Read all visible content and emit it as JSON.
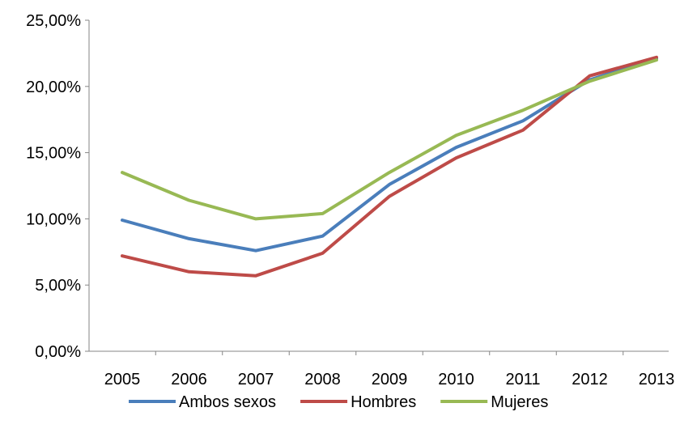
{
  "chart_data": {
    "type": "line",
    "x": [
      "2005",
      "2006",
      "2007",
      "2008",
      "2009",
      "2010",
      "2011",
      "2012",
      "2013"
    ],
    "y_ticks": [
      "0,00%",
      "5,00%",
      "10,00%",
      "15,00%",
      "20,00%",
      "25,00%"
    ],
    "ylim": [
      0,
      25
    ],
    "y_unit": "percent",
    "grid": false,
    "legend_position": "bottom",
    "series": [
      {
        "name": "Ambos sexos",
        "color": "#4a7ebb",
        "values": [
          9.9,
          8.5,
          7.6,
          8.7,
          12.6,
          15.4,
          17.4,
          20.5,
          22.1
        ]
      },
      {
        "name": "Hombres",
        "color": "#be4b48",
        "values": [
          7.2,
          6.0,
          5.7,
          7.4,
          11.7,
          14.6,
          16.7,
          20.8,
          22.2
        ]
      },
      {
        "name": "Mujeres",
        "color": "#98b954",
        "values": [
          13.5,
          11.4,
          10.0,
          10.4,
          13.5,
          16.3,
          18.2,
          20.4,
          22.0
        ]
      }
    ]
  }
}
